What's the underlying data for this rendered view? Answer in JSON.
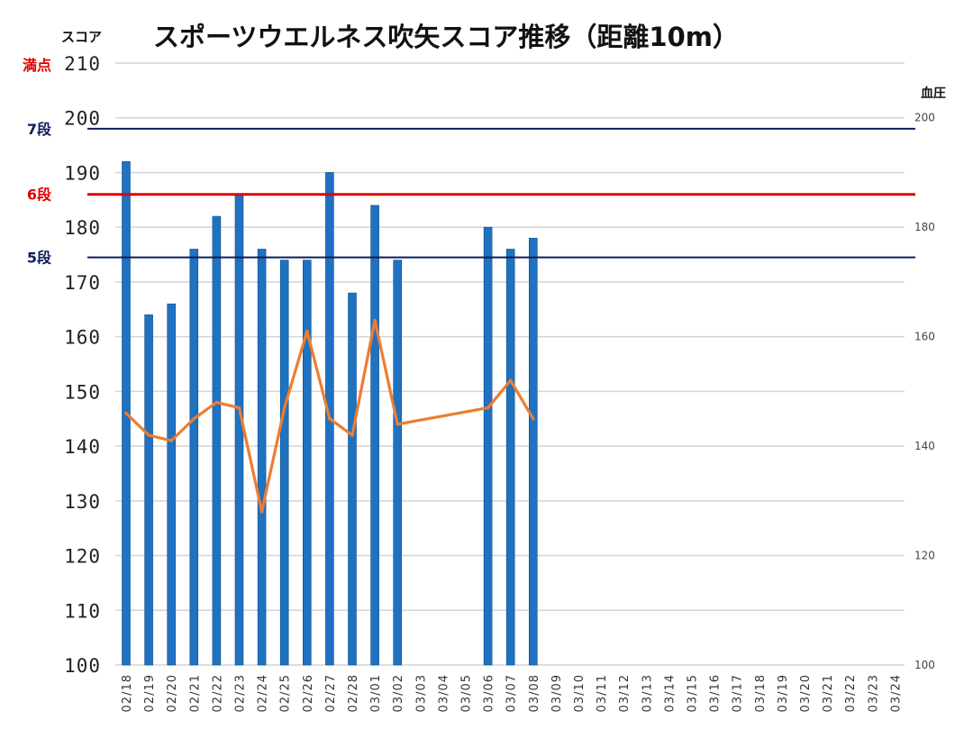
{
  "chart_data": {
    "type": "bar",
    "title": "スポーツウエルネス吹矢スコア推移（距離10m）",
    "y1_label": "スコア",
    "y2_label": "血圧",
    "y1_range": [
      100,
      210
    ],
    "y1_ticks": [
      "100",
      "110",
      "120",
      "130",
      "140",
      "150",
      "160",
      "170",
      "180",
      "190",
      "200",
      "210"
    ],
    "y2_range": [
      100,
      210
    ],
    "y2_ticks": [
      "100",
      "120",
      "140",
      "160",
      "180",
      "200"
    ],
    "grid": true,
    "categories": [
      "02/18",
      "02/19",
      "02/20",
      "02/21",
      "02/22",
      "02/23",
      "02/24",
      "02/25",
      "02/26",
      "02/27",
      "02/28",
      "03/01",
      "03/02",
      "03/03",
      "03/04",
      "03/05",
      "03/06",
      "03/07",
      "03/08",
      "03/09",
      "03/10",
      "03/11",
      "03/12",
      "03/13",
      "03/14",
      "03/15",
      "03/16",
      "03/17",
      "03/18",
      "03/19",
      "03/20",
      "03/21",
      "03/22",
      "03/23",
      "03/24"
    ],
    "series": [
      {
        "type": "bar",
        "axis": "left",
        "color": "#1f72c0",
        "values": [
          192,
          164,
          166,
          176,
          182,
          186,
          176,
          174,
          174,
          190,
          168,
          184,
          174,
          null,
          null,
          null,
          180,
          176,
          178,
          null,
          null,
          null,
          null,
          null,
          null,
          null,
          null,
          null,
          null,
          null,
          null,
          null,
          null,
          null,
          null
        ]
      },
      {
        "type": "line",
        "axis": "right",
        "color": "#ed7d31",
        "values": [
          146,
          142,
          141,
          145,
          148,
          147,
          128,
          147,
          161,
          145,
          142,
          163,
          144,
          null,
          null,
          null,
          147,
          152,
          145,
          null,
          null,
          null,
          null,
          null,
          null,
          null,
          null,
          null,
          null,
          null,
          null,
          null,
          null,
          null,
          null
        ]
      }
    ],
    "reference_lines": [
      {
        "label": "満点",
        "value": 210,
        "color": "#e00000",
        "draw_line": false
      },
      {
        "label": "7段",
        "value": 198,
        "color": "#0b1d5c",
        "draw_line": true
      },
      {
        "label": "6段",
        "value": 186,
        "color": "#e00000",
        "draw_line": true
      },
      {
        "label": "5段",
        "value": 174.5,
        "color": "#0b1d5c",
        "draw_line": true
      }
    ]
  }
}
